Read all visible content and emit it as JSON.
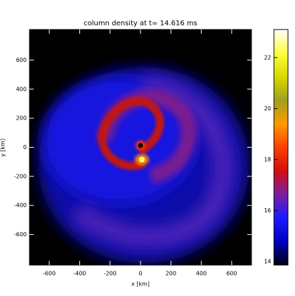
{
  "chart_data": {
    "type": "heatmap",
    "title": "column density at t= 14.616 ms",
    "x_label": "x [km]",
    "y_label": "y [km]",
    "xlim": [
      -730,
      730
    ],
    "xticks": [
      -600,
      -400,
      -200,
      0,
      200,
      400,
      600
    ],
    "ylim": [
      -810,
      810
    ],
    "yticks": [
      -600,
      -400,
      -200,
      0,
      200,
      400,
      600
    ],
    "colorbar": {
      "lim": [
        13.86,
        23.1
      ],
      "ticks": [
        14,
        16,
        18,
        20,
        22
      ],
      "colors": [
        "#000010",
        "#0000c0",
        "#1a1aff",
        "#7a1fa0",
        "#d01010",
        "#ff4000",
        "#ff9900",
        "#a0a020",
        "#d8d800",
        "#ffff40",
        "#ffffff"
      ]
    }
  }
}
